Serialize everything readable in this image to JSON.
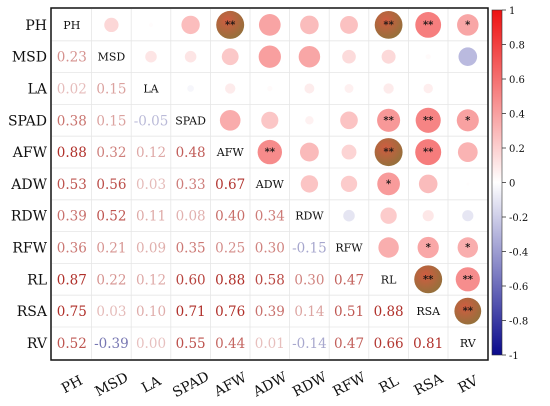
{
  "chart_data": {
    "type": "heatmap",
    "variables": [
      "PH",
      "MSD",
      "LA",
      "SPAD",
      "AFW",
      "ADW",
      "RDW",
      "RFW",
      "RL",
      "RSA",
      "RV"
    ],
    "lower_triangle_values": [
      [],
      [
        "0.23"
      ],
      [
        "0.02",
        "0.15"
      ],
      [
        "0.38",
        "0.15",
        "-0.05"
      ],
      [
        "0.88",
        "0.32",
        "0.12",
        "0.48"
      ],
      [
        "0.53",
        "0.56",
        "0.03",
        "0.33",
        "0.67"
      ],
      [
        "0.39",
        "0.52",
        "0.11",
        "0.08",
        "0.40",
        "0.34"
      ],
      [
        "0.36",
        "0.21",
        "0.09",
        "0.35",
        "0.25",
        "0.30",
        "-0.15"
      ],
      [
        "0.87",
        "0.22",
        "0.12",
        "0.60",
        "0.88",
        "0.58",
        "0.30",
        "0.47"
      ],
      [
        "0.75",
        "0.03",
        "0.10",
        "0.71",
        "0.76",
        "0.39",
        "0.14",
        "0.51",
        "0.88"
      ],
      [
        "0.52",
        "-0.39",
        "0.00",
        "0.55",
        "0.44",
        "0.01",
        "-0.14",
        "0.47",
        "0.66",
        "0.81"
      ]
    ],
    "significance_marks": [
      [],
      [
        "",
        ""
      ],
      [
        "",
        "",
        ""
      ],
      [
        "",
        "",
        "",
        ""
      ],
      [
        "**",
        "",
        "",
        "",
        ""
      ],
      [
        "",
        "",
        "",
        "",
        "**",
        ""
      ],
      [
        "",
        "",
        "",
        "",
        "",
        "",
        ""
      ],
      [
        "",
        "",
        "",
        "",
        "",
        "",
        "",
        ""
      ],
      [
        "**",
        "",
        "",
        "**",
        "**",
        "*",
        "",
        "",
        ""
      ],
      [
        "**",
        "",
        "",
        "**",
        "**",
        "",
        "",
        "*",
        "**",
        ""
      ],
      [
        "*",
        "",
        "",
        "*",
        "",
        "",
        "",
        "*",
        "**",
        "**",
        ""
      ]
    ],
    "colorbar": {
      "range": [
        -1,
        1
      ],
      "ticks": [
        "1",
        "0.8",
        "0.6",
        "0.4",
        "0.2",
        "0",
        "-0.2",
        "-0.4",
        "-0.6",
        "-0.8",
        "-1"
      ],
      "colors": {
        "negative": "#0a0a8c",
        "zero": "#ffffff",
        "positive": "#ee1111"
      }
    },
    "upper_triangle": "circles",
    "lower_triangle": "numbers"
  }
}
